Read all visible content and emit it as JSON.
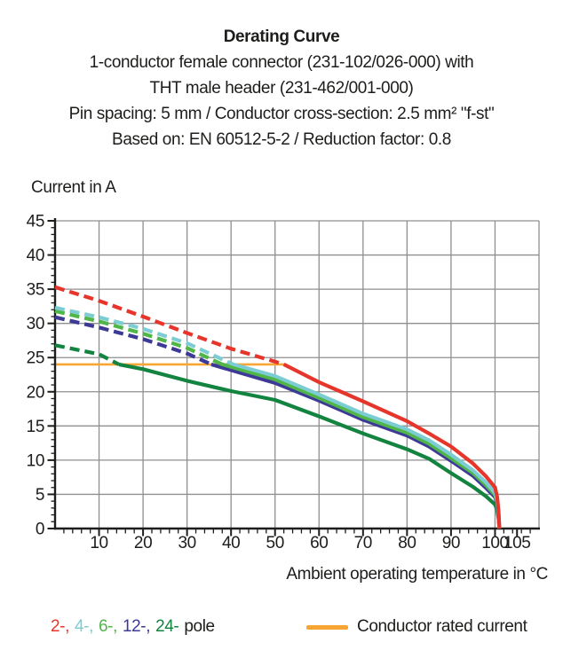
{
  "header": {
    "title": "Derating Curve",
    "subtitle_lines": [
      "1-conductor female connector (231-102/026-000) with",
      "THT male header (231-462/001-000)",
      "Pin spacing: 5 mm / Conductor cross-section: 2.5 mm² \"f-st\"",
      "Based on: EN 60512-5-2 / Reduction factor: 0.8"
    ]
  },
  "chart_data": {
    "type": "line",
    "title": "Derating Curve",
    "xlabel": "Ambient operating temperature in °C",
    "ylabel": "Current in A",
    "xlim": [
      0,
      110
    ],
    "ylim": [
      0,
      45
    ],
    "x_major_ticks": [
      10,
      20,
      30,
      40,
      50,
      60,
      70,
      80,
      90,
      100,
      105
    ],
    "x_minor_step": 2,
    "y_major_ticks": [
      0,
      5,
      10,
      15,
      20,
      25,
      30,
      35,
      40,
      45
    ],
    "y_minor_step": 1,
    "grid": true,
    "grid_color": "#8f8f8f",
    "axis_color": "#1d1d1b",
    "legend_position": "bottom",
    "line_style_note": "curves dashed above rated current (24 A), solid below",
    "rated_line": {
      "label": "Conductor rated current",
      "value": 24,
      "t_start": 0,
      "t_end": 52.5,
      "color": "#f7a634"
    },
    "series": [
      {
        "name": "2-pole",
        "color": "#e6352b",
        "solid_from": 52,
        "points": [
          [
            0,
            35.3
          ],
          [
            10,
            33.3
          ],
          [
            20,
            31.0
          ],
          [
            30,
            28.6
          ],
          [
            40,
            26.3
          ],
          [
            50,
            24.4
          ],
          [
            52,
            24.0
          ],
          [
            60,
            21.4
          ],
          [
            70,
            18.6
          ],
          [
            80,
            15.7
          ],
          [
            85,
            13.9
          ],
          [
            90,
            12.0
          ],
          [
            95,
            9.5
          ],
          [
            98,
            7.6
          ],
          [
            100,
            6.0
          ],
          [
            100.5,
            4.6
          ],
          [
            100.8,
            2.6
          ],
          [
            101,
            0
          ]
        ]
      },
      {
        "name": "4-pole",
        "color": "#7ccdd3",
        "solid_from": 40.5,
        "points": [
          [
            0,
            32.3
          ],
          [
            10,
            30.9
          ],
          [
            20,
            29.2
          ],
          [
            30,
            27.1
          ],
          [
            40.5,
            24.0
          ],
          [
            50,
            22.3
          ],
          [
            60,
            19.6
          ],
          [
            70,
            16.8
          ],
          [
            80,
            14.5
          ],
          [
            85,
            12.9
          ],
          [
            90,
            10.8
          ],
          [
            95,
            8.5
          ],
          [
            98,
            6.7
          ],
          [
            100,
            5.2
          ],
          [
            100.5,
            4.0
          ],
          [
            100.8,
            2.2
          ],
          [
            101,
            0
          ]
        ]
      },
      {
        "name": "6-pole",
        "color": "#50b648",
        "solid_from": 38,
        "points": [
          [
            0,
            31.8
          ],
          [
            10,
            30.3
          ],
          [
            20,
            28.5
          ],
          [
            30,
            26.4
          ],
          [
            38,
            24.0
          ],
          [
            50,
            21.8
          ],
          [
            60,
            19.1
          ],
          [
            70,
            16.3
          ],
          [
            80,
            14.0
          ],
          [
            85,
            12.4
          ],
          [
            90,
            10.3
          ],
          [
            95,
            8.1
          ],
          [
            98,
            6.3
          ],
          [
            100,
            4.9
          ],
          [
            100.5,
            3.8
          ],
          [
            100.8,
            2.0
          ],
          [
            101,
            0
          ]
        ]
      },
      {
        "name": "12-pole",
        "color": "#3c3a96",
        "solid_from": 35.5,
        "points": [
          [
            0,
            30.9
          ],
          [
            10,
            29.4
          ],
          [
            20,
            27.7
          ],
          [
            30,
            25.6
          ],
          [
            35.5,
            24.0
          ],
          [
            50,
            21.3
          ],
          [
            60,
            18.7
          ],
          [
            70,
            15.9
          ],
          [
            80,
            13.6
          ],
          [
            85,
            12.0
          ],
          [
            90,
            9.9
          ],
          [
            95,
            7.7
          ],
          [
            98,
            5.9
          ],
          [
            100,
            4.6
          ],
          [
            100.5,
            3.5
          ],
          [
            100.8,
            1.8
          ],
          [
            101,
            0
          ]
        ]
      },
      {
        "name": "24-pole",
        "color": "#12843f",
        "solid_from": 14.5,
        "points": [
          [
            0,
            26.8
          ],
          [
            10,
            25.5
          ],
          [
            14.5,
            24.0
          ],
          [
            20,
            23.3
          ],
          [
            30,
            21.6
          ],
          [
            40,
            20.1
          ],
          [
            50,
            18.8
          ],
          [
            60,
            16.4
          ],
          [
            70,
            13.9
          ],
          [
            80,
            11.6
          ],
          [
            85,
            10.2
          ],
          [
            90,
            8.1
          ],
          [
            95,
            6.1
          ],
          [
            98,
            4.7
          ],
          [
            100,
            3.5
          ],
          [
            100.5,
            2.7
          ],
          [
            100.8,
            1.4
          ],
          [
            101,
            0
          ]
        ]
      }
    ]
  },
  "legend": {
    "poles": [
      {
        "label": "2-,",
        "color": "#e6352b"
      },
      {
        "label": "4-,",
        "color": "#7ccdd3"
      },
      {
        "label": "6-,",
        "color": "#50b648"
      },
      {
        "label": "12-,",
        "color": "#3c3a96"
      },
      {
        "label": "24-",
        "color": "#12843f"
      }
    ],
    "suffix": "pole",
    "rated": {
      "label": "Conductor rated current",
      "color": "#f7a634"
    }
  }
}
